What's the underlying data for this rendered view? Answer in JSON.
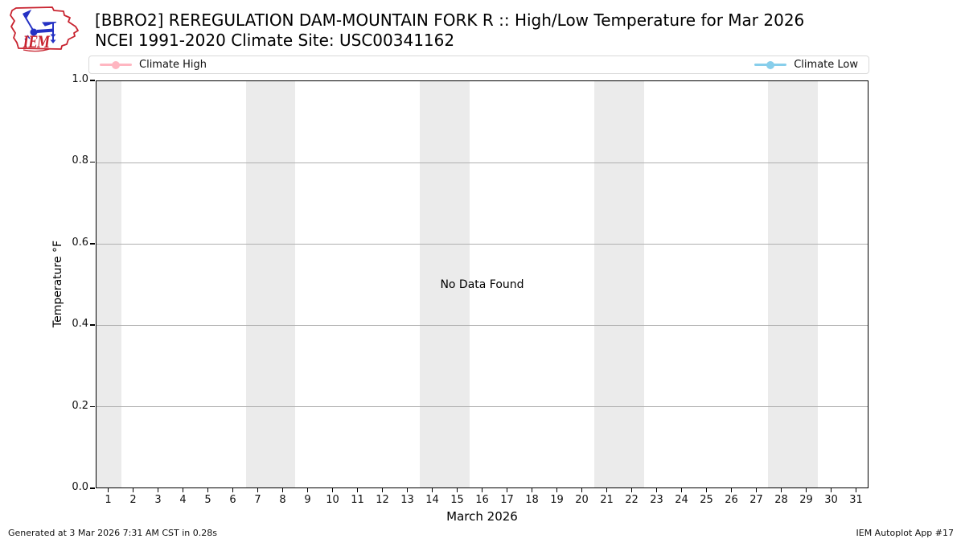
{
  "header": {
    "title_line1": "[BBRO2] REREGULATION DAM-MOUNTAIN FORK R :: High/Low Temperature for Mar 2026",
    "title_line2": "NCEI 1991-2020 Climate Site: USC00341162",
    "logo_text": "IEM"
  },
  "legend": {
    "items": [
      {
        "label": "Climate High",
        "color": "#ffb6c1"
      },
      {
        "label": "Climate Low",
        "color": "#87ceeb"
      }
    ]
  },
  "chart_data": {
    "type": "line",
    "title": "[BBRO2] REREGULATION DAM-MOUNTAIN FORK R :: High/Low Temperature for Mar 2026",
    "subtitle": "NCEI 1991-2020 Climate Site: USC00341162",
    "xlabel": "March 2026",
    "ylabel": "Temperature °F",
    "x_ticks": [
      1,
      2,
      3,
      4,
      5,
      6,
      7,
      8,
      9,
      10,
      11,
      12,
      13,
      14,
      15,
      16,
      17,
      18,
      19,
      20,
      21,
      22,
      23,
      24,
      25,
      26,
      27,
      28,
      29,
      30,
      31
    ],
    "x_range": [
      0.5,
      31.5
    ],
    "y_ticks": [
      "0.0",
      "0.2",
      "0.4",
      "0.6",
      "0.8",
      "1.0"
    ],
    "ylim": [
      0.0,
      1.0
    ],
    "grid": "horizontal",
    "legend_position": "top",
    "no_data_message": "No Data Found",
    "series": [
      {
        "name": "Climate High",
        "color": "#ffb6c1",
        "x": [],
        "values": []
      },
      {
        "name": "Climate Low",
        "color": "#87ceeb",
        "x": [],
        "values": []
      }
    ],
    "weekend_shading": {
      "color": "#ebebeb",
      "day_ranges": [
        [
          1,
          1
        ],
        [
          7,
          8
        ],
        [
          14,
          15
        ],
        [
          21,
          22
        ],
        [
          28,
          29
        ]
      ]
    }
  },
  "footer": {
    "left": "Generated at 3 Mar 2026 7:31 AM CST in 0.28s",
    "right": "IEM Autoplot App #17"
  }
}
